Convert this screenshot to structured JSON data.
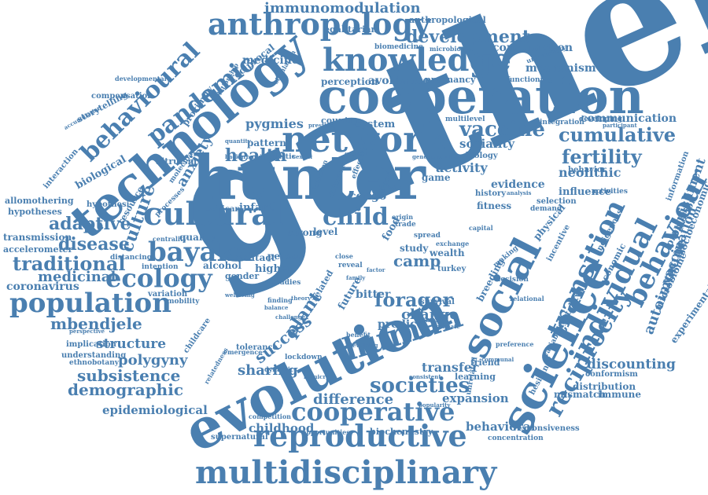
{
  "colors": {
    "word": "#4a7fb0",
    "background": "#ffffff"
  },
  "words": [
    "gatherer",
    "hunter",
    "cooperation",
    "evolution",
    "technology",
    "science",
    "social",
    "network",
    "knowledge",
    "anthropology",
    "cultural",
    "reproductive",
    "multidisciplinary",
    "population",
    "human",
    "individual",
    "behaviour",
    "transition",
    "reciprocity",
    "cooperative",
    "bayaka",
    "ecology",
    "pandemic",
    "behavioural",
    "societies",
    "vaccine",
    "cumulative",
    "fertility",
    "child",
    "health",
    "adaptive",
    "disease",
    "traditional",
    "forager",
    "culture",
    "development",
    "immunomodulation",
    "mbendjele",
    "structure",
    "polygyny",
    "subsistence",
    "demographic",
    "sharing",
    "success",
    "plant",
    "change",
    "difference",
    "camp",
    "medicine",
    "pygmies",
    "consumption",
    "mechanism",
    "medicinal",
    "coronavirus",
    "autoimmune",
    "vaccination",
    "punishment",
    "discounting",
    "transfer",
    "expansion",
    "behavioral",
    "childhood",
    "epidemiological",
    "neolithic",
    "communication",
    "sociality",
    "activity",
    "anxiety",
    "transmission",
    "accelerometer",
    "hypotheses",
    "allomothering",
    "biological",
    "storytelling",
    "compensation",
    "developmental",
    "egalitarian",
    "biomedicine",
    "microbiomes",
    "perception",
    "avoidance",
    "pregnancy",
    "reciprocal",
    "proximity",
    "relationship",
    "altruism",
    "african",
    "infant",
    "evidence",
    "influence",
    "selection",
    "history",
    "fitness",
    "wealth",
    "turkey",
    "study",
    "game",
    "country",
    "system",
    "pattern",
    "quality",
    "alcohol",
    "gender",
    "higher",
    "contact",
    "person",
    "level",
    "strong",
    "congo",
    "food",
    "bitter",
    "predict",
    "future",
    "related",
    "survival",
    "breeding",
    "mortality",
    "economic",
    "promotion",
    "socioeconomic",
    "experimental",
    "microbiome",
    "distribution",
    "mismatch",
    "immune",
    "responsiveness",
    "concentration",
    "biochemistry",
    "supernatural",
    "lockdown",
    "tolerance",
    "childcare",
    "understanding",
    "ethnobotany",
    "implication",
    "variation",
    "mobility",
    "anthropological",
    "universality",
    "functioning",
    "indigenous",
    "incentive",
    "physical",
    "demand",
    "unrelated",
    "learning",
    "friend",
    "conformism",
    "hesitancy",
    "variability",
    "emergence",
    "relatedness",
    "opportunities",
    "competition",
    "intention",
    "distancing",
    "centrality",
    "hypothesi",
    "resource",
    "processes",
    "molecular",
    "interaction",
    "accumulation",
    "simulation",
    "integration",
    "developing",
    "participant",
    "information",
    "activities",
    "relational",
    "making",
    "decision",
    "multilevel",
    "acoustic",
    "prestige",
    "cyclical",
    "biology",
    "exchange",
    "sensitive",
    "origin",
    "trade",
    "spread",
    "group",
    "effective",
    "different",
    "infection",
    "close",
    "reveal",
    "family",
    "factor",
    "sexual",
    "genetic",
    "partner",
    "preference",
    "communal",
    "consistent",
    "popularity",
    "benefit",
    "gambia",
    "primate",
    "analysis",
    "capital",
    "behavior",
    "studies",
    "finding",
    "wellbeing",
    "challenge",
    "balance",
    "quantity",
    "background",
    "perspective",
    "theory",
    "dynamic",
    "mimicry",
    "evolving"
  ]
}
